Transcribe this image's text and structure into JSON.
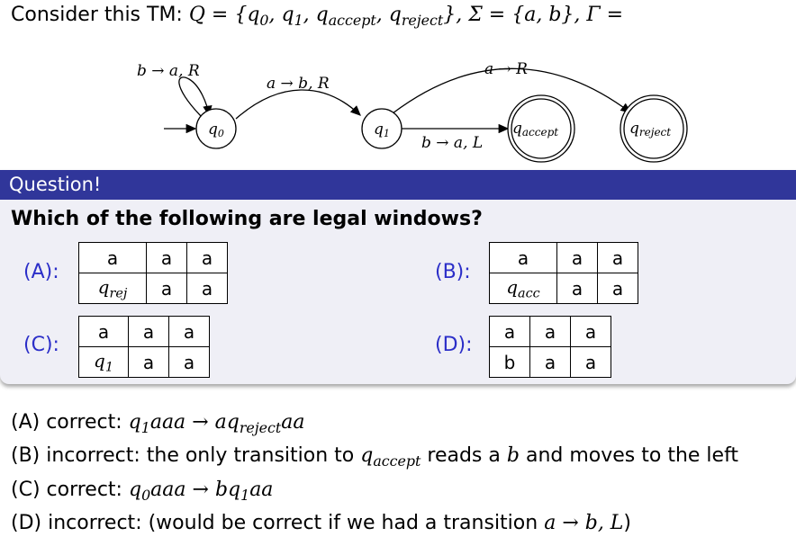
{
  "intro": {
    "lead": "Consider this TM:",
    "definition_parts": [
      "Q = {q",
      "0",
      ", q",
      "1",
      ", q",
      "accept",
      ", q",
      "reject",
      "}, Σ = {a, b}, Γ ="
    ]
  },
  "diagram": {
    "states": [
      "0",
      "1",
      "accept",
      "reject"
    ],
    "state_prefix": "q",
    "transitions": {
      "self_loop": "b → a, R",
      "q0_to_q1": "a → b, R",
      "q1_to_reject": "a → R",
      "q1_to_accept": "b → a, L"
    }
  },
  "question": {
    "header": "Question!",
    "text": "Which of the following are legal windows?",
    "options": [
      {
        "label": "(A):",
        "top": [
          "a",
          "a",
          "a"
        ],
        "bottom": [
          "q",
          "a",
          "a"
        ],
        "bottom_sub": "rej"
      },
      {
        "label": "(B):",
        "top": [
          "a",
          "a",
          "a"
        ],
        "bottom": [
          "q",
          "a",
          "a"
        ],
        "bottom_sub": "acc"
      },
      {
        "label": "(C):",
        "top": [
          "a",
          "a",
          "a"
        ],
        "bottom": [
          "q",
          "a",
          "a"
        ],
        "bottom_sub": "1"
      },
      {
        "label": "(D):",
        "top": [
          "a",
          "a",
          "a"
        ],
        "bottom": [
          "b",
          "a",
          "a"
        ],
        "bottom_sub": ""
      }
    ]
  },
  "answers": {
    "a": {
      "prefix": "(A) correct:",
      "lhs": "q",
      "lhs_sub": "1",
      "lhs_rest": "aaa",
      "arrow": "→",
      "rhs": "aq",
      "rhs_sub": "reject",
      "rhs_rest": "aa"
    },
    "b": {
      "prefix": "(B) incorrect: the only transition to",
      "q": "q",
      "q_sub": "accept",
      "mid": "reads a",
      "b": "b",
      "suffix": "and moves to the left"
    },
    "c": {
      "prefix": "(C) correct:",
      "lhs": "q",
      "lhs_sub": "0",
      "lhs_rest": "aaa",
      "arrow": "→",
      "rhs": "bq",
      "rhs_sub": "1",
      "rhs_rest": "aa"
    },
    "d": {
      "prefix": "(D) incorrect: (would be correct if we had a transition",
      "rule": "a → b, L",
      "close": ")"
    }
  }
}
